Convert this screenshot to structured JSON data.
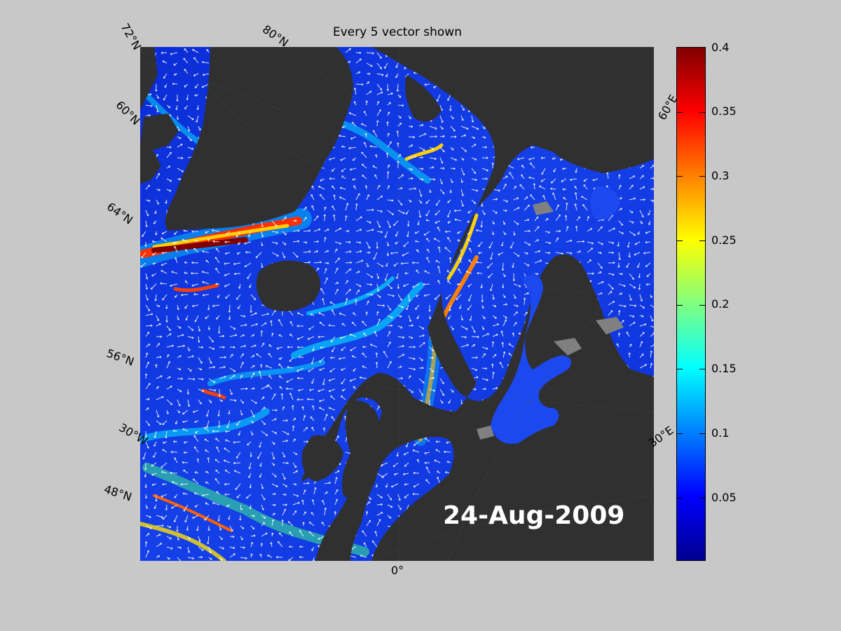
{
  "title": "Every 5 vector shown",
  "date_label": "24-Aug-2009",
  "grid_labels": {
    "lat_72": "72°N",
    "lat_80": "80°N",
    "lat_60": "60°N",
    "lat_64": "64°N",
    "lat_56": "56°N",
    "lon_30w": "30°W",
    "lat_48": "48°N",
    "lon_0": "0°",
    "lon_30e": "30°E",
    "lon_60e": "60°E"
  },
  "colorbar": {
    "ticks": [
      "0.4",
      "0.35",
      "0.3",
      "0.25",
      "0.2",
      "0.15",
      "0.1",
      "0.05"
    ],
    "min": 0,
    "max": 0.4,
    "colors": [
      "#00008f",
      "#0000ff",
      "#0080ff",
      "#00ffff",
      "#80ff80",
      "#ffff00",
      "#ff8000",
      "#ff0000",
      "#800000"
    ]
  },
  "colors": {
    "land": "#303030",
    "ocean_base": "#1033e0",
    "lakes": "#808080",
    "background": "#c8c8c8"
  }
}
